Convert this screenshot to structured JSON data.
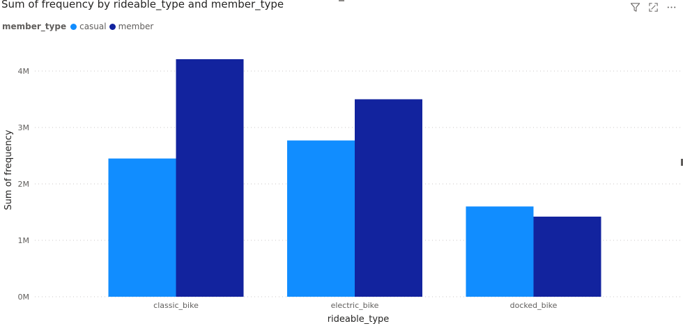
{
  "visual": {
    "title": "Sum of frequency by rideable_type and member_type"
  },
  "header_icons": [
    {
      "name": "filter-icon",
      "glyph": "filter"
    },
    {
      "name": "focus-mode-icon",
      "glyph": "expand"
    },
    {
      "name": "more-options-icon",
      "glyph": "ellipsis"
    }
  ],
  "legend": {
    "title": "member_type",
    "items": [
      {
        "label": "casual",
        "color": "#118DFF"
      },
      {
        "label": "member",
        "color": "#12239E"
      }
    ]
  },
  "chart_data": {
    "type": "bar",
    "title": "Sum of frequency by rideable_type and member_type",
    "xlabel": "rideable_type",
    "ylabel": "Sum of frequency",
    "categories": [
      "classic_bike",
      "electric_bike",
      "docked_bike"
    ],
    "series": [
      {
        "name": "casual",
        "color": "#118DFF",
        "values": [
          2450000,
          2770000,
          1600000
        ]
      },
      {
        "name": "member",
        "color": "#12239E",
        "values": [
          4210000,
          3500000,
          1420000
        ]
      }
    ],
    "ylim": [
      0,
      4200000
    ],
    "yticks": [
      {
        "value": 0,
        "label": "0M"
      },
      {
        "value": 1000000,
        "label": "1M"
      },
      {
        "value": 2000000,
        "label": "2M"
      },
      {
        "value": 3000000,
        "label": "3M"
      },
      {
        "value": 4000000,
        "label": "4M"
      }
    ],
    "grid": true,
    "legend_position": "top-left"
  }
}
